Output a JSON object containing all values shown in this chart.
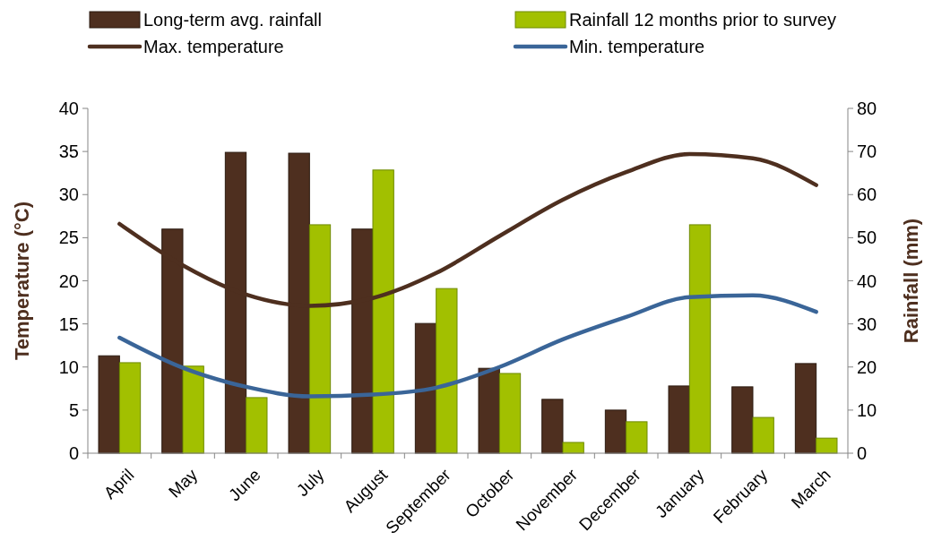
{
  "chart_data": {
    "type": "bar",
    "categories": [
      "April",
      "May",
      "June",
      "July",
      "August",
      "September",
      "October",
      "November",
      "December",
      "January",
      "February",
      "March"
    ],
    "ylabel": "Temperature (°C)",
    "y2label": "Rainfall (mm)",
    "ylim": [
      0,
      40
    ],
    "yticks": [
      0,
      5,
      10,
      15,
      20,
      25,
      30,
      35,
      40
    ],
    "y2lim": [
      0,
      80
    ],
    "y2ticks": [
      0,
      10,
      20,
      30,
      40,
      50,
      60,
      70,
      80
    ],
    "legend": "top",
    "grid": false,
    "series": [
      {
        "name": "Long-term avg. rainfall",
        "axis": "y2",
        "color": "#4e2f1f",
        "values": [
          22.6,
          52,
          69.8,
          69.6,
          52,
          30.1,
          19.7,
          12.5,
          10,
          15.6,
          15.4,
          20.8
        ]
      },
      {
        "name": "Rainfall 12 months prior to survey",
        "axis": "y2",
        "color": "#a2c000",
        "values": [
          21,
          20.2,
          12.9,
          53,
          65.7,
          38.2,
          18.5,
          2.5,
          7.3,
          53,
          8.3,
          3.5
        ]
      },
      {
        "name": "Max. temperature",
        "type": "line",
        "color": "#4e2f1f",
        "values": [
          26.6,
          21.8,
          18.4,
          17.1,
          18,
          20.9,
          25.2,
          29.4,
          32.6,
          34.7,
          34.2,
          31.1
        ]
      },
      {
        "name": "Min. temperature",
        "type": "line",
        "color": "#3a6598",
        "values": [
          13.4,
          9.9,
          7.7,
          6.6,
          6.8,
          7.6,
          10,
          13.2,
          15.8,
          18.1,
          18.3,
          16.4
        ]
      }
    ]
  }
}
